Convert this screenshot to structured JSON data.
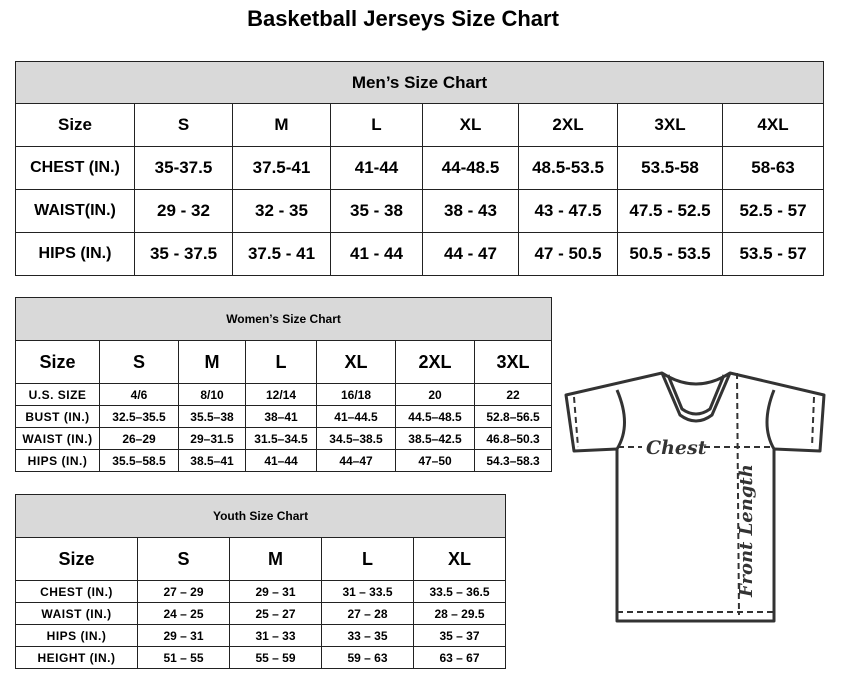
{
  "title": "Basketball Jerseys Size Chart",
  "men": {
    "heading": "Men’s Size Chart",
    "header": [
      "Size",
      "S",
      "M",
      "L",
      "XL",
      "2XL",
      "3XL",
      "4XL"
    ],
    "rows": [
      [
        "CHEST (IN.)",
        "35-37.5",
        "37.5-41",
        "41-44",
        "44-48.5",
        "48.5-53.5",
        "53.5-58",
        "58-63"
      ],
      [
        "WAIST(IN.)",
        "29 - 32",
        "32 - 35",
        "35 - 38",
        "38 - 43",
        "43 - 47.5",
        "47.5 - 52.5",
        "52.5 - 57"
      ],
      [
        "HIPS (IN.)",
        "35 - 37.5",
        "37.5 - 41",
        "41 - 44",
        "44 - 47",
        "47 - 50.5",
        "50.5 - 53.5",
        "53.5 - 57"
      ]
    ]
  },
  "women": {
    "heading": "Women’s Size Chart",
    "header": [
      "Size",
      "S",
      "M",
      "L",
      "XL",
      "2XL",
      "3XL"
    ],
    "rows": [
      [
        "U.S. SIZE",
        "4/6",
        "8/10",
        "12/14",
        "16/18",
        "20",
        "22"
      ],
      [
        "BUST (IN.)",
        "32.5–35.5",
        "35.5–38",
        "38–41",
        "41–44.5",
        "44.5–48.5",
        "52.8–56.5"
      ],
      [
        "WAIST (IN.)",
        "26–29",
        "29–31.5",
        "31.5–34.5",
        "34.5–38.5",
        "38.5–42.5",
        "46.8–50.3"
      ],
      [
        "HIPS (IN.)",
        "35.5–58.5",
        "38.5–41",
        "41–44",
        "44–47",
        "47–50",
        "54.3–58.3"
      ]
    ]
  },
  "youth": {
    "heading": "Youth Size Chart",
    "header": [
      "Size",
      "S",
      "M",
      "L",
      "XL"
    ],
    "rows": [
      [
        "CHEST (IN.)",
        "27 – 29",
        "29 – 31",
        "31 – 33.5",
        "33.5 – 36.5"
      ],
      [
        "WAIST (IN.)",
        "24 – 25",
        "25 – 27",
        "27 – 28",
        "28 – 29.5"
      ],
      [
        "HIPS (IN.)",
        "29 – 31",
        "31 – 33",
        "33 – 35",
        "35 – 37"
      ],
      [
        "HEIGHT (IN.)",
        "51 – 55",
        "55 – 59",
        "59 – 63",
        "63 – 67"
      ]
    ]
  },
  "diagram": {
    "chest_label": "Chest",
    "length_label": "Front Length"
  },
  "colors": {
    "header_bg": "#d9d9d9",
    "line": "#333333"
  }
}
